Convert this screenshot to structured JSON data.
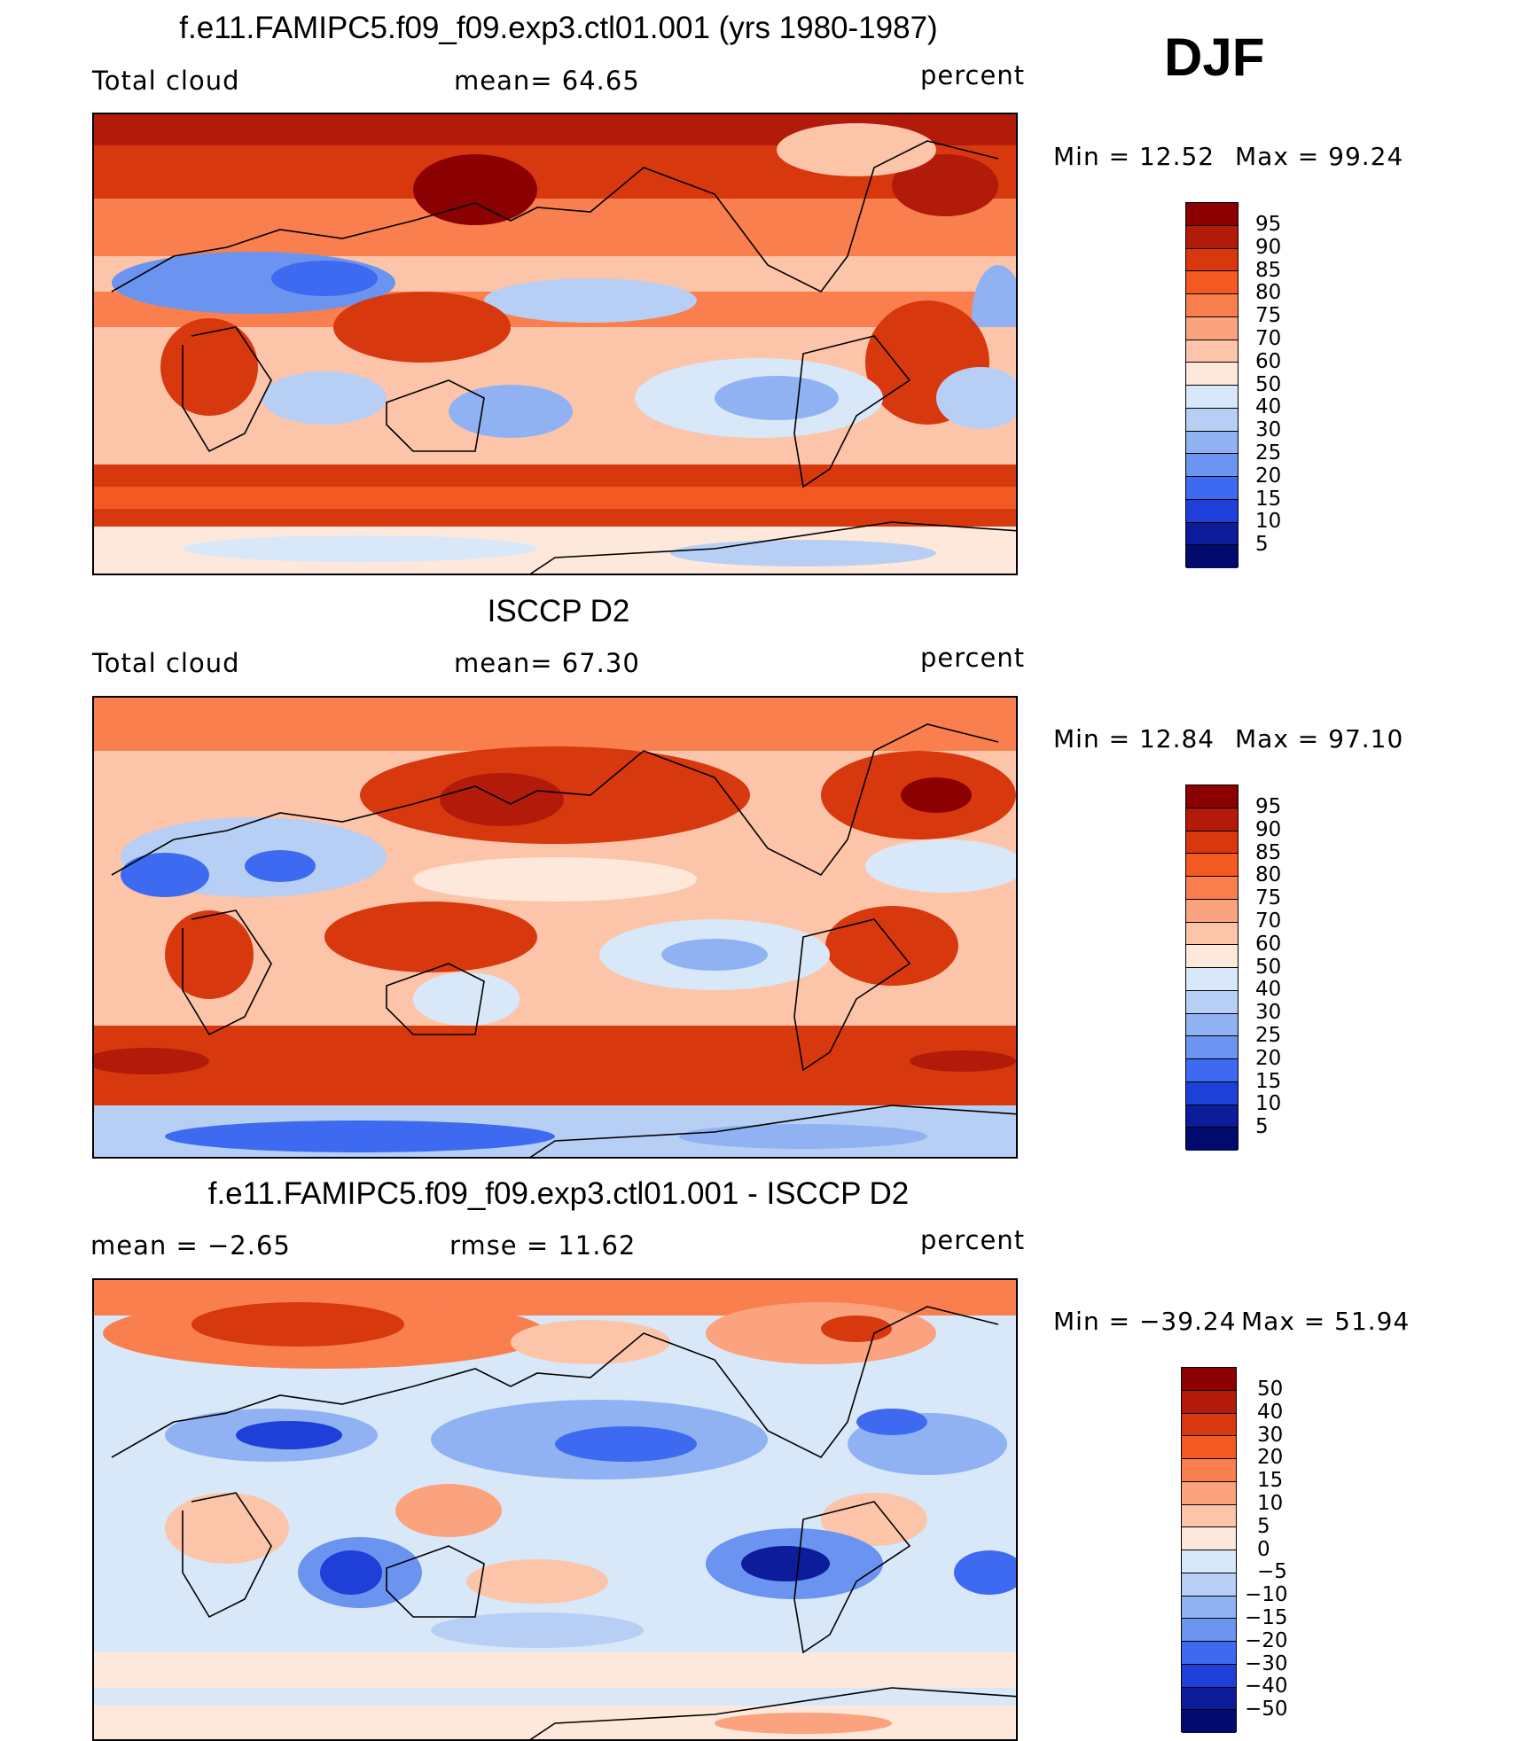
{
  "season": "DJF",
  "units": "percent",
  "panels": [
    {
      "title": "f.e11.FAMIPC5.f09_f09.exp3.ctl01.001 (yrs 1980-1987)",
      "left_label": "Total cloud",
      "center_label": "mean=   64.65",
      "right_label": "percent",
      "min_text": "Min  =   12.52",
      "max_text": "Max  =   99.24",
      "colorbar_labels": [
        "95",
        "90",
        "85",
        "80",
        "75",
        "70",
        "60",
        "50",
        "40",
        "30",
        "25",
        "20",
        "15",
        "10",
        "5"
      ]
    },
    {
      "title": "ISCCP D2",
      "left_label": "Total cloud",
      "center_label": "mean=   67.30",
      "right_label": "percent",
      "min_text": "Min  =   12.84",
      "max_text": "Max  =   97.10",
      "colorbar_labels": [
        "95",
        "90",
        "85",
        "80",
        "75",
        "70",
        "60",
        "50",
        "40",
        "30",
        "25",
        "20",
        "15",
        "10",
        "5"
      ]
    },
    {
      "title": "f.e11.FAMIPC5.f09_f09.exp3.ctl01.001 - ISCCP D2",
      "left_label": "mean  =    −2.65",
      "center_label": "rmse  =    11.62",
      "right_label": "percent",
      "min_text": "Min  = −39.24",
      "max_text": "Max  =    51.94",
      "colorbar_labels": [
        "50",
        "40",
        "30",
        "20",
        "15",
        "10",
        "5",
        "0",
        "−5",
        "−10",
        "−15",
        "−20",
        "−30",
        "−40",
        "−50"
      ]
    }
  ],
  "colors": {
    "scale": [
      "#8b0000",
      "#b21a0a",
      "#d8380e",
      "#f25a22",
      "#f97f4f",
      "#fba27f",
      "#fcc5aa",
      "#fde8db",
      "#d9e8f8",
      "#b7cff4",
      "#91b2f2",
      "#6b93f0",
      "#3d6af0",
      "#1e40d8",
      "#0c1c9b",
      "#020a6e"
    ]
  }
}
